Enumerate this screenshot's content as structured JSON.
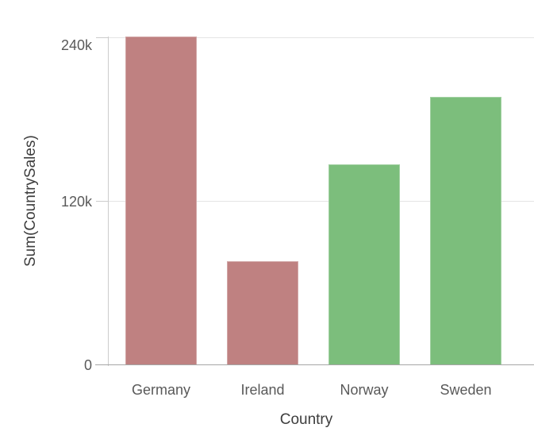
{
  "chart": {
    "style": {
      "background": "#ffffff",
      "gridline_color": "#e4e4e4",
      "axis_line_color": "#cccccc",
      "baseline_color": "#a6a6a6",
      "tick_mark_color": "#cccccc",
      "tick_label_color": "#595959",
      "category_label_color": "#595959",
      "axis_title_color": "#3d3d3d",
      "bar_red": "#bf8181",
      "bar_green": "#7cbe7c"
    }
  },
  "chart_data": {
    "type": "bar",
    "title": "",
    "xlabel": "Country",
    "ylabel": "Sum(CountrySales)",
    "categories": [
      "Germany",
      "Ireland",
      "Norway",
      "Sweden"
    ],
    "values": [
      241000,
      76000,
      147000,
      197000
    ],
    "bar_colors": [
      "#bf8181",
      "#bf8181",
      "#7cbe7c",
      "#7cbe7c"
    ],
    "yticks": [
      {
        "value": 0,
        "label": "0"
      },
      {
        "value": 120000,
        "label": "120k"
      },
      {
        "value": 240000,
        "label": "240k"
      }
    ],
    "ylim": [
      0,
      241000
    ],
    "grid": "horizontal-only",
    "legend": "none"
  }
}
